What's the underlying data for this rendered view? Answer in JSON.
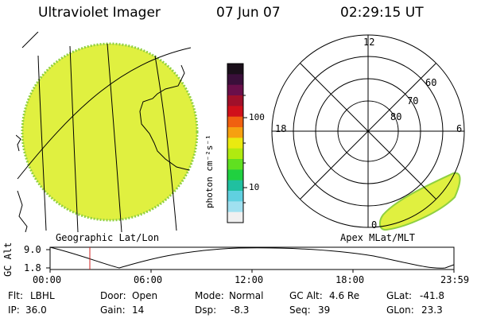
{
  "header": {
    "instrument": "Ultraviolet Imager",
    "date": "07 Jun 07",
    "time": "02:29:15 UT"
  },
  "colorbar": {
    "unit_label": "photon cm⁻²s⁻¹",
    "tick_high": "100",
    "tick_low": "10",
    "colors": [
      "#1a0f1a",
      "#3a0f3a",
      "#6a0f4a",
      "#a0102a",
      "#d0101a",
      "#f06010",
      "#f6a010",
      "#eaea10",
      "#b0ea10",
      "#60e020",
      "#20d040",
      "#20c0a0",
      "#60d0e0",
      "#a0e0f0",
      "#f0f0f0"
    ]
  },
  "left_panel": {
    "caption": "Geographic Lat/Lon",
    "fill_color": "#e0f040"
  },
  "right_panel": {
    "caption": "Apex MLat/MLT",
    "mlt_12": "12",
    "mlt_18": "18",
    "mlt_6": "6",
    "mlt_0": "0",
    "lat_60": "60",
    "lat_70": "70",
    "lat_80": "80"
  },
  "altitude_plot": {
    "ylabel": "GC Alt",
    "y_high": "9.0",
    "y_low": "1.8",
    "x_ticks": [
      "00:00",
      "06:00",
      "12:00",
      "18:00",
      "23:59"
    ],
    "current_time_color": "#d02020"
  },
  "footer": {
    "filter_label": "Flt:",
    "filter_value": "LBHL",
    "door_label": "Door:",
    "door_value": "Open",
    "mode_label": "Mode:",
    "mode_value": "Normal",
    "gcalt_label": "GC Alt:",
    "gcalt_value": "4.6 Re",
    "glat_label": "GLat:",
    "glat_value": "-41.8",
    "ip_label": "IP:",
    "ip_value": "36.0",
    "gain_label": "Gain:",
    "gain_value": "14",
    "dsp_label": "Dsp:",
    "dsp_value": "-8.3",
    "seq_label": "Seq:",
    "seq_value": "39",
    "glon_label": "GLon:",
    "glon_value": "23.3"
  }
}
